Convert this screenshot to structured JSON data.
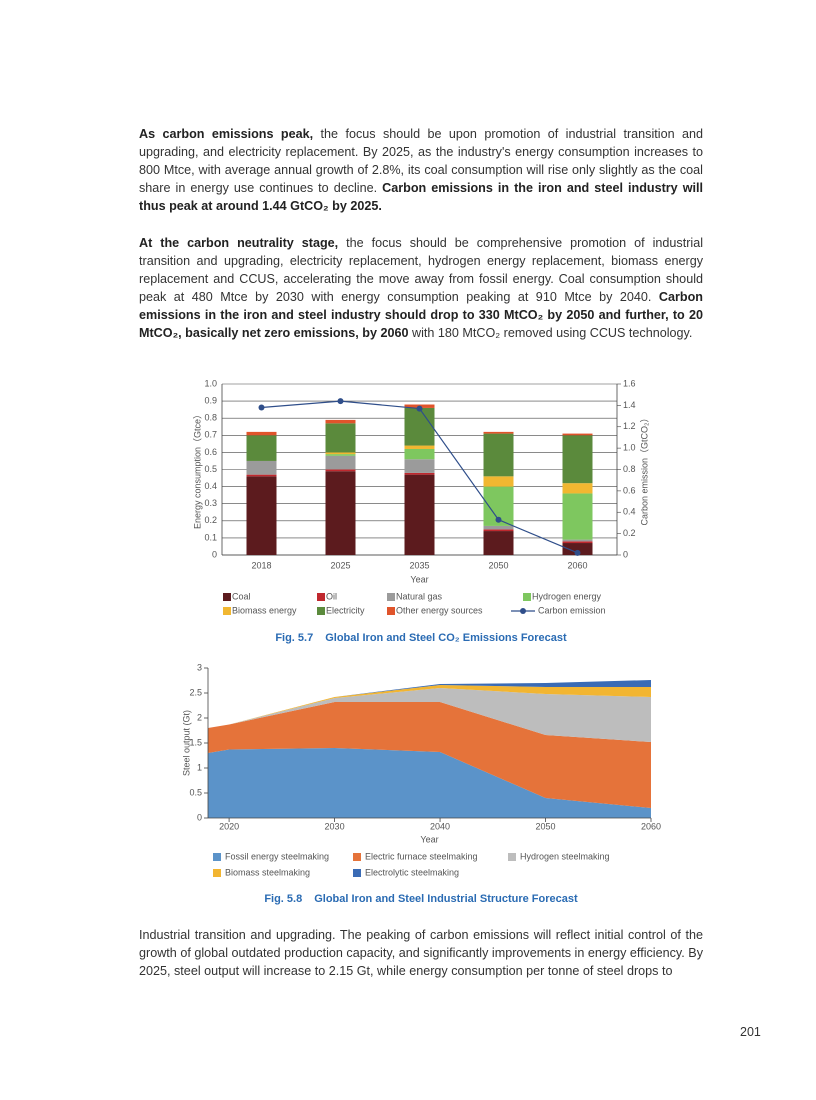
{
  "paragraphs": [
    {
      "runs": [
        "As carbon emissions peak,",
        "the focus should be upon promotion of industrial transition and upgrading, and electricity replacement. By 2025, as the industry's energy consumption increases to 800 Mtce, with average annual growth of 2.8%, its coal consumption will rise only slightly as the coal share in energy use continues to decline.",
        "Carbon emissions in the iron and steel industry will thus peak at around 1.44 GtCO₂ by 2025."
      ]
    },
    {
      "runs": [
        "At the carbon neutrality stage,",
        "the focus should be comprehensive promotion of industrial transition and upgrading, electricity replacement, hydrogen energy replacement, biomass energy replacement and CCUS, accelerating the move away from fossil energy. Coal consumption should peak at 480 Mtce by 2030 with energy consumption peaking at 910 Mtce by 2040.",
        "Carbon emissions in the iron and steel industry should drop to 330 MtCO₂ by 2050 and further, to 20 MtCO₂, basically net zero emissions, by 2060",
        "with 180 MtCO₂ removed using CCUS technology."
      ]
    },
    {
      "runs": [
        "Industrial transition and upgrading. The peaking of carbon emissions will reflect initial control of the growth of global outdated production capacity, and significantly improvements in energy efficiency. By 2025, steel output will increase to 2.15 Gt, while energy consumption per tonne of steel drops to"
      ]
    }
  ],
  "chart_data": [
    {
      "type": "bar",
      "stacked": true,
      "figure_label": "Fig. 5.7",
      "title": "Global Iron and Steel CO₂ Emissions Forecast",
      "x_label": "Year",
      "y_label": "Energy consumption（Gtce）",
      "y2_label": "Carbon emission（GtCO₂）",
      "categories": [
        "2018",
        "2025",
        "2035",
        "2050",
        "2060"
      ],
      "ylim": [
        0,
        1
      ],
      "yticks": [
        0,
        0.1,
        0.2,
        0.3,
        0.4,
        0.5,
        0.6,
        0.7,
        0.8,
        0.9,
        {
          "value": 1,
          "label": "1.0"
        }
      ],
      "y2lim": [
        0,
        1.6
      ],
      "y2ticks": [
        0,
        0.2,
        0.4,
        0.6,
        0.8,
        {
          "value": 1,
          "label": "1.0"
        },
        1.2,
        1.4,
        1.6
      ],
      "grid": true,
      "series": [
        {
          "name": "Coal",
          "color": "#5c1b1e",
          "values": [
            0.46,
            0.49,
            0.47,
            0.14,
            0.07
          ]
        },
        {
          "name": "Oil",
          "color": "#c0282e",
          "values": [
            0.01,
            0.01,
            0.01,
            0.01,
            0.01
          ]
        },
        {
          "name": "Natural gas",
          "color": "#9b9b9b",
          "values": [
            0.08,
            0.08,
            0.08,
            0.02,
            0.01
          ]
        },
        {
          "name": "Hydrogen energy",
          "color": "#7ec75f",
          "values": [
            0,
            0.01,
            0.06,
            0.23,
            0.27
          ]
        },
        {
          "name": "Biomass energy",
          "color": "#f1b731",
          "values": [
            0,
            0.01,
            0.02,
            0.06,
            0.06
          ]
        },
        {
          "name": "Electricity",
          "color": "#5b8a3c",
          "values": [
            0.15,
            0.17,
            0.22,
            0.25,
            0.28
          ]
        },
        {
          "name": "Other energy sources",
          "color": "#e0542b",
          "values": [
            0.02,
            0.02,
            0.02,
            0.01,
            0.01
          ]
        },
        {
          "name": "Carbon emission",
          "color": "#2f4e8a",
          "type": "line",
          "axis": "y2",
          "values": [
            1.38,
            1.44,
            1.37,
            0.33,
            0.02
          ]
        }
      ]
    },
    {
      "type": "area",
      "stacked": true,
      "figure_label": "Fig. 5.8",
      "title": "Global Iron and Steel Industrial Structure Forecast",
      "x_label": "Year",
      "y_label": "Steel output (Gt)",
      "x": [
        2018,
        2020,
        2030,
        2040,
        2050,
        2060
      ],
      "xlim": [
        2018,
        2060
      ],
      "xticks": [
        2020,
        2030,
        2040,
        2050,
        2060
      ],
      "ylim": [
        0,
        3
      ],
      "yticks": [
        0,
        0.5,
        1,
        1.5,
        2,
        2.5,
        3
      ],
      "series": [
        {
          "name": "Fossil energy steelmaking",
          "color": "#5b93c9",
          "values": [
            1.3,
            1.37,
            1.4,
            1.32,
            0.4,
            0.2
          ]
        },
        {
          "name": "Electric furnace steelmaking",
          "color": "#e5733a",
          "values": [
            0.5,
            0.5,
            0.92,
            1.0,
            1.26,
            1.32
          ]
        },
        {
          "name": "Hydrogen steelmaking",
          "color": "#bdbdbd",
          "values": [
            0,
            0,
            0.08,
            0.28,
            0.82,
            0.9
          ]
        },
        {
          "name": "Biomass steelmaking",
          "color": "#f2b531",
          "values": [
            0,
            0,
            0.02,
            0.06,
            0.14,
            0.2
          ]
        },
        {
          "name": "Electrolytic steelmaking",
          "color": "#3a6bb5",
          "values": [
            0,
            0,
            0,
            0.02,
            0.08,
            0.14
          ]
        }
      ]
    }
  ],
  "page_number": "201"
}
